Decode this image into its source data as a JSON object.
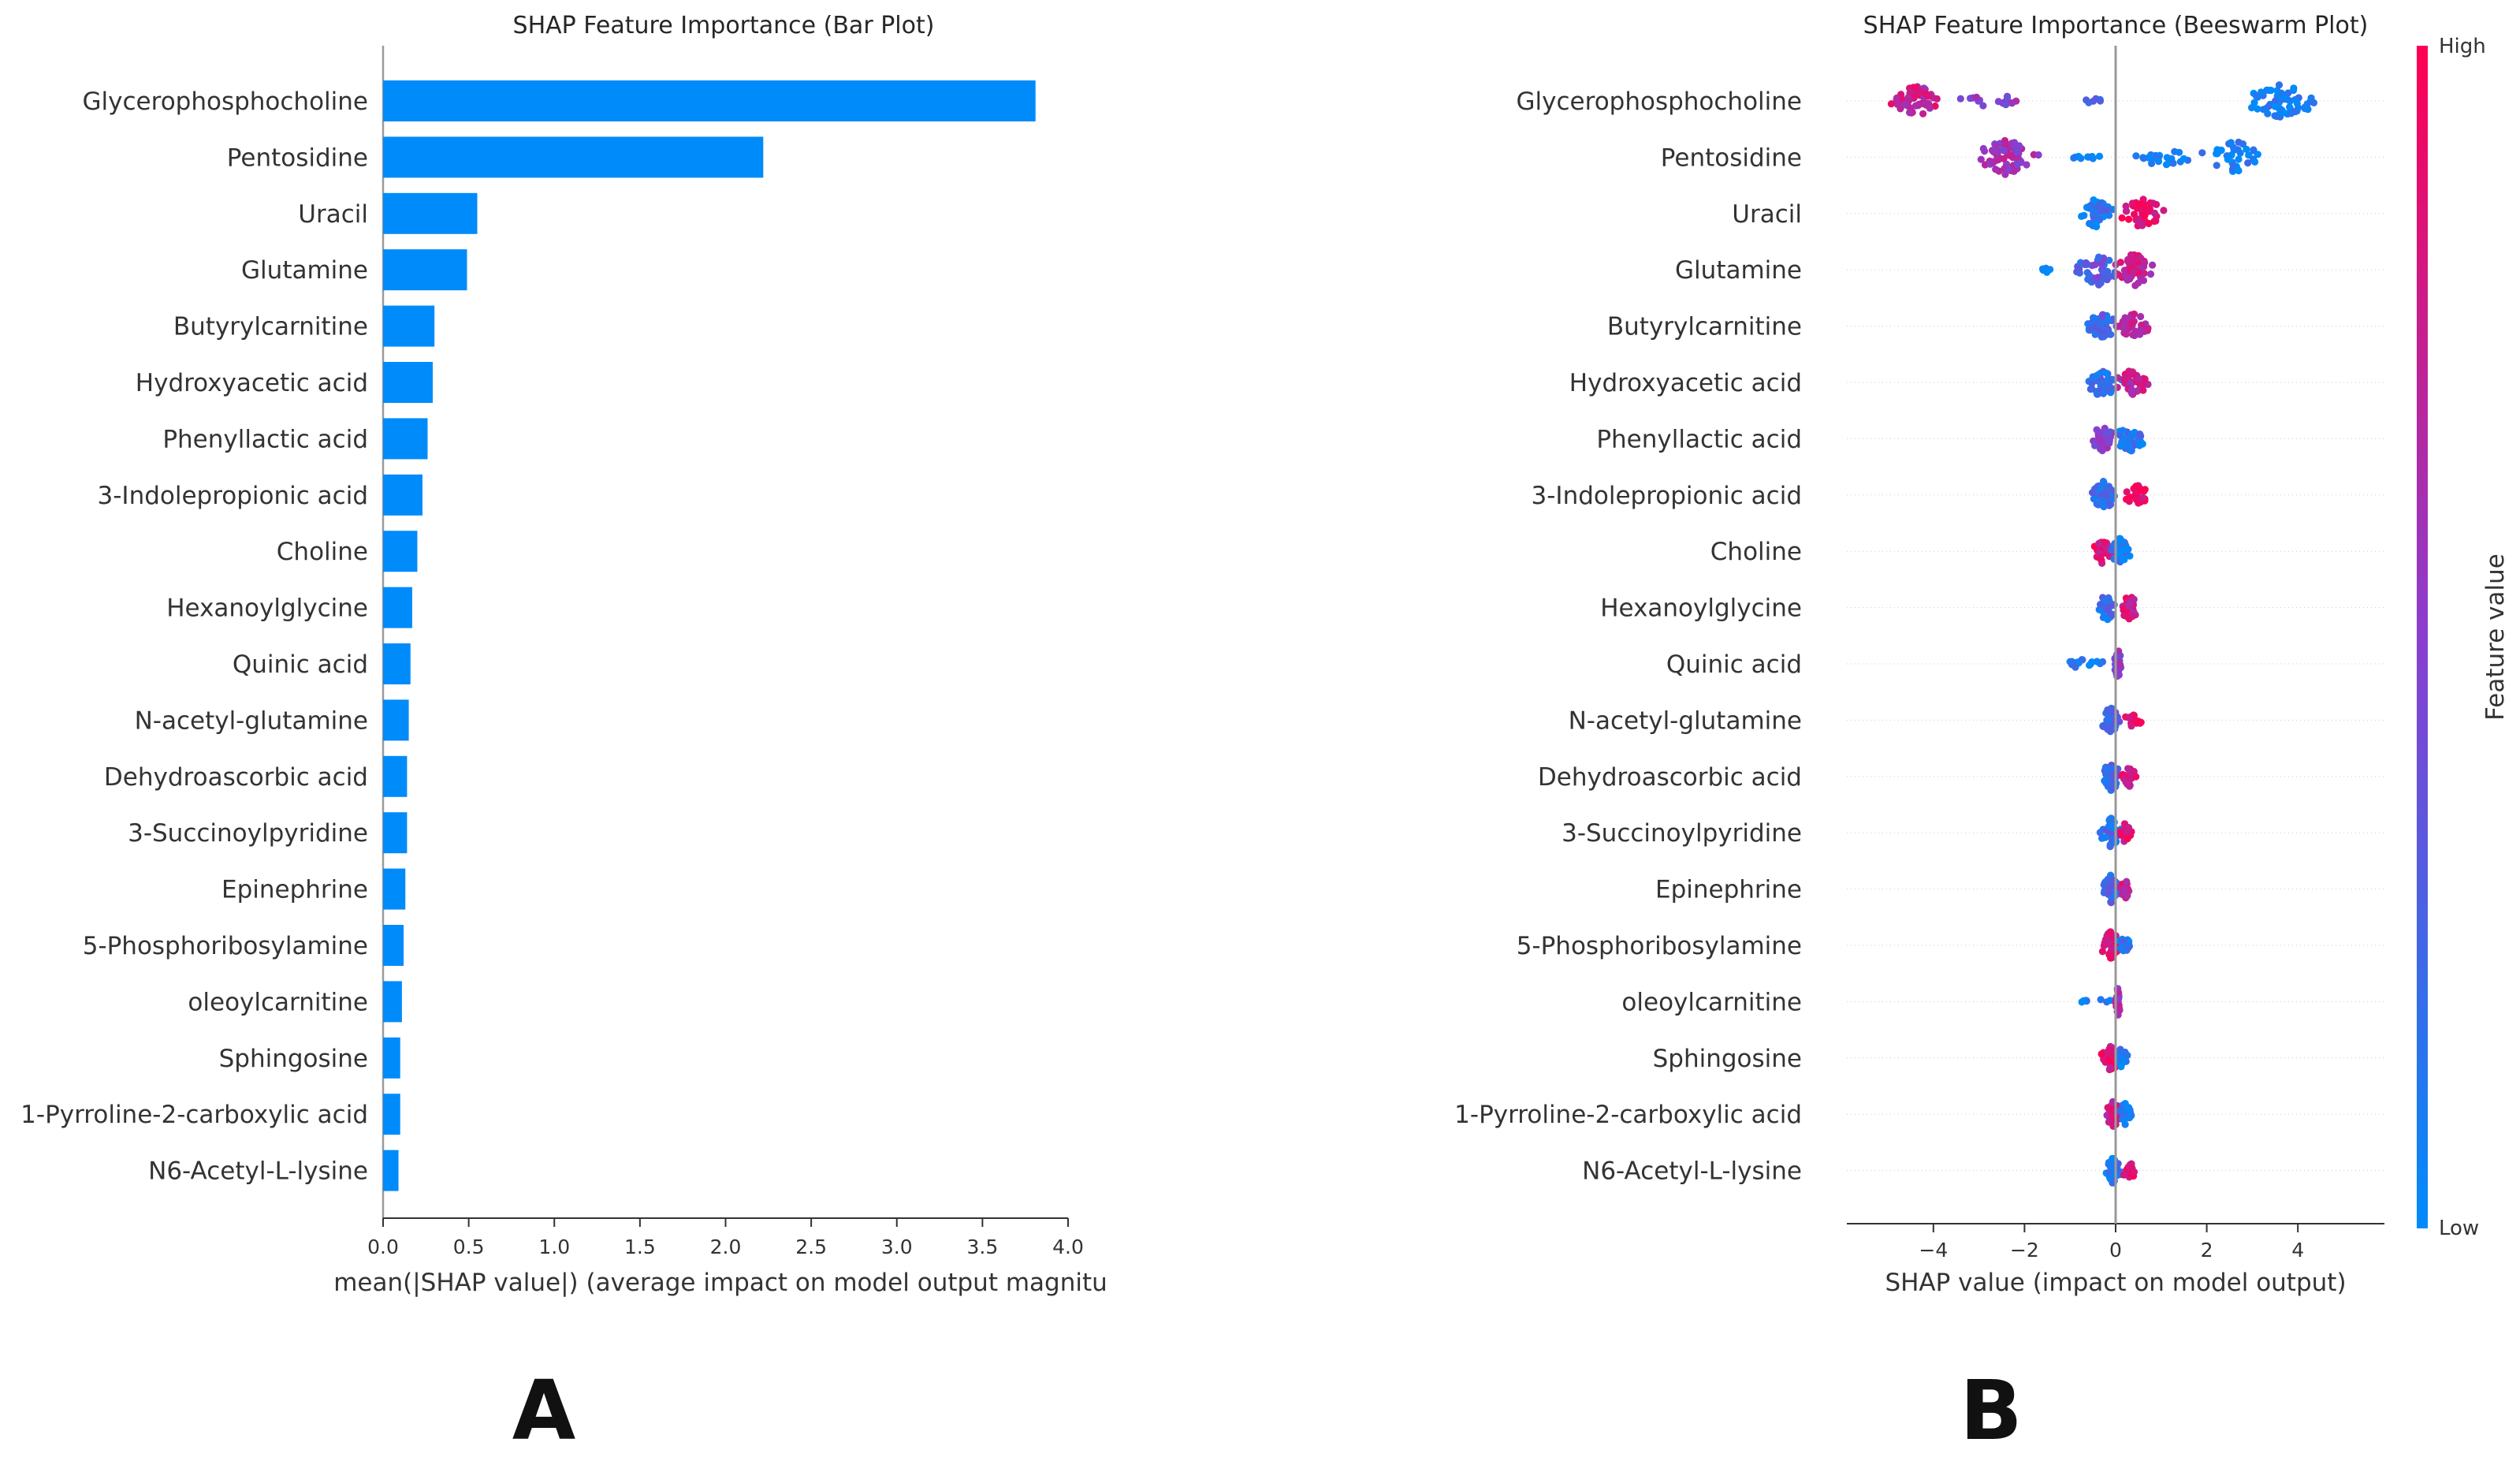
{
  "colors": {
    "bar": "#008bfb",
    "low": "#008bfb",
    "high": "#ff0052",
    "mid": "#8a3ecf"
  },
  "chart_data": [
    {
      "type": "bar",
      "orientation": "horizontal",
      "title": "SHAP Feature Importance (Bar Plot)",
      "xlabel": "mean(|SHAP value|) (average impact on model output magnitu",
      "xlim": [
        0,
        4.0
      ],
      "xticks": [
        "0.0",
        "0.5",
        "1.0",
        "1.5",
        "2.0",
        "2.5",
        "3.0",
        "3.5",
        "4.0"
      ],
      "panel_label": "A",
      "categories": [
        "Glycerophosphocholine",
        "Pentosidine",
        "Uracil",
        "Glutamine",
        "Butyrylcarnitine",
        "Hydroxyacetic acid",
        "Phenyllactic acid",
        "3-Indolepropionic acid",
        "Choline",
        "Hexanoylglycine",
        "Quinic acid",
        "N-acetyl-glutamine",
        "Dehydroascorbic acid",
        "3-Succinoylpyridine",
        "Epinephrine",
        "5-Phosphoribosylamine",
        "oleoylcarnitine",
        "Sphingosine",
        "1-Pyrroline-2-carboxylic acid",
        "N6-Acetyl-L-lysine"
      ],
      "values": [
        3.81,
        2.22,
        0.55,
        0.49,
        0.3,
        0.29,
        0.26,
        0.23,
        0.2,
        0.17,
        0.16,
        0.15,
        0.14,
        0.14,
        0.13,
        0.12,
        0.11,
        0.1,
        0.1,
        0.09
      ]
    },
    {
      "type": "scatter",
      "subtype": "beeswarm",
      "title": "SHAP Feature Importance (Beeswarm Plot)",
      "xlabel": "SHAP value (impact on model output)",
      "xlim": [
        -5.9,
        5.9
      ],
      "xticks": [
        "−4",
        "−2",
        "0",
        "2",
        "4"
      ],
      "xtick_values": [
        -4,
        -2,
        0,
        2,
        4
      ],
      "panel_label": "B",
      "colorbar": {
        "label": "Feature value",
        "high": "High",
        "low": "Low"
      },
      "categories": [
        "Glycerophosphocholine",
        "Pentosidine",
        "Uracil",
        "Glutamine",
        "Butyrylcarnitine",
        "Hydroxyacetic acid",
        "Phenyllactic acid",
        "3-Indolepropionic acid",
        "Choline",
        "Hexanoylglycine",
        "Quinic acid",
        "N-acetyl-glutamine",
        "Dehydroascorbic acid",
        "3-Succinoylpyridine",
        "Epinephrine",
        "5-Phosphoribosylamine",
        "oleoylcarnitine",
        "Sphingosine",
        "1-Pyrroline-2-carboxylic acid",
        "N6-Acetyl-L-lysine"
      ],
      "clusters": [
        [
          {
            "c": -4.4,
            "s": 0.35,
            "n": 60,
            "f": 0.75,
            "sp": 0.3
          },
          {
            "c": -2.6,
            "s": 0.55,
            "n": 16,
            "f": 0.55,
            "sp": 0.12
          },
          {
            "c": -0.5,
            "s": 0.2,
            "n": 6,
            "f": 0.2,
            "sp": 0.06
          },
          {
            "c": 3.6,
            "s": 0.6,
            "n": 60,
            "f": 0.05,
            "sp": 0.3
          }
        ],
        [
          {
            "c": -2.4,
            "s": 0.45,
            "n": 70,
            "f": 0.6,
            "sp": 0.32
          },
          {
            "c": -0.6,
            "s": 0.3,
            "n": 10,
            "f": 0.1,
            "sp": 0.06
          },
          {
            "c": 1.0,
            "s": 0.5,
            "n": 22,
            "f": 0.05,
            "sp": 0.15
          },
          {
            "c": 2.6,
            "s": 0.45,
            "n": 40,
            "f": 0.05,
            "sp": 0.3
          }
        ],
        [
          {
            "c": -0.45,
            "s": 0.25,
            "n": 40,
            "f": 0.15,
            "sp": 0.26
          },
          {
            "c": 0.6,
            "s": 0.35,
            "n": 44,
            "f": 0.9,
            "sp": 0.26
          }
        ],
        [
          {
            "c": -0.4,
            "s": 0.35,
            "n": 50,
            "f": 0.3,
            "sp": 0.3
          },
          {
            "c": 0.4,
            "s": 0.3,
            "n": 50,
            "f": 0.75,
            "sp": 0.3
          },
          {
            "c": -1.6,
            "s": 0.15,
            "n": 5,
            "f": 0.1,
            "sp": 0.08
          }
        ],
        [
          {
            "c": -0.3,
            "s": 0.25,
            "n": 40,
            "f": 0.25,
            "sp": 0.24
          },
          {
            "c": 0.4,
            "s": 0.25,
            "n": 40,
            "f": 0.75,
            "sp": 0.24
          }
        ],
        [
          {
            "c": -0.3,
            "s": 0.3,
            "n": 45,
            "f": 0.2,
            "sp": 0.26
          },
          {
            "c": 0.4,
            "s": 0.25,
            "n": 40,
            "f": 0.75,
            "sp": 0.26
          }
        ],
        [
          {
            "c": -0.3,
            "s": 0.2,
            "n": 35,
            "f": 0.5,
            "sp": 0.22
          },
          {
            "c": 0.3,
            "s": 0.25,
            "n": 40,
            "f": 0.15,
            "sp": 0.24
          }
        ],
        [
          {
            "c": -0.25,
            "s": 0.2,
            "n": 45,
            "f": 0.15,
            "sp": 0.26
          },
          {
            "c": 0.5,
            "s": 0.25,
            "n": 25,
            "f": 0.9,
            "sp": 0.18
          }
        ],
        [
          {
            "c": -0.3,
            "s": 0.15,
            "n": 35,
            "f": 0.9,
            "sp": 0.22
          },
          {
            "c": 0.1,
            "s": 0.15,
            "n": 40,
            "f": 0.1,
            "sp": 0.24
          }
        ],
        [
          {
            "c": -0.2,
            "s": 0.15,
            "n": 40,
            "f": 0.2,
            "sp": 0.24
          },
          {
            "c": 0.3,
            "s": 0.15,
            "n": 30,
            "f": 0.8,
            "sp": 0.22
          }
        ],
        [
          {
            "c": -0.7,
            "s": 0.35,
            "n": 14,
            "f": 0.1,
            "sp": 0.08
          },
          {
            "c": 0.05,
            "s": 0.06,
            "n": 40,
            "f": 0.5,
            "sp": 0.26
          }
        ],
        [
          {
            "c": -0.1,
            "s": 0.15,
            "n": 40,
            "f": 0.3,
            "sp": 0.24
          },
          {
            "c": 0.4,
            "s": 0.2,
            "n": 15,
            "f": 0.9,
            "sp": 0.12
          }
        ],
        [
          {
            "c": -0.1,
            "s": 0.15,
            "n": 45,
            "f": 0.25,
            "sp": 0.26
          },
          {
            "c": 0.3,
            "s": 0.12,
            "n": 20,
            "f": 0.85,
            "sp": 0.18
          }
        ],
        [
          {
            "c": -0.1,
            "s": 0.15,
            "n": 50,
            "f": 0.2,
            "sp": 0.26
          },
          {
            "c": 0.2,
            "s": 0.1,
            "n": 20,
            "f": 0.85,
            "sp": 0.18
          }
        ],
        [
          {
            "c": -0.1,
            "s": 0.15,
            "n": 50,
            "f": 0.2,
            "sp": 0.26
          },
          {
            "c": 0.2,
            "s": 0.1,
            "n": 20,
            "f": 0.8,
            "sp": 0.18
          }
        ],
        [
          {
            "c": -0.1,
            "s": 0.15,
            "n": 45,
            "f": 0.85,
            "sp": 0.26
          },
          {
            "c": 0.2,
            "s": 0.12,
            "n": 15,
            "f": 0.1,
            "sp": 0.14
          }
        ],
        [
          {
            "c": -0.45,
            "s": 0.3,
            "n": 8,
            "f": 0.1,
            "sp": 0.06
          },
          {
            "c": 0.05,
            "s": 0.04,
            "n": 40,
            "f": 0.6,
            "sp": 0.26
          }
        ],
        [
          {
            "c": -0.1,
            "s": 0.15,
            "n": 40,
            "f": 0.85,
            "sp": 0.24
          },
          {
            "c": 0.15,
            "s": 0.1,
            "n": 25,
            "f": 0.1,
            "sp": 0.2
          }
        ],
        [
          {
            "c": -0.05,
            "s": 0.12,
            "n": 45,
            "f": 0.8,
            "sp": 0.24
          },
          {
            "c": 0.2,
            "s": 0.12,
            "n": 20,
            "f": 0.1,
            "sp": 0.2
          }
        ],
        [
          {
            "c": -0.05,
            "s": 0.12,
            "n": 45,
            "f": 0.15,
            "sp": 0.24
          },
          {
            "c": 0.3,
            "s": 0.12,
            "n": 20,
            "f": 0.85,
            "sp": 0.16
          }
        ]
      ]
    }
  ]
}
